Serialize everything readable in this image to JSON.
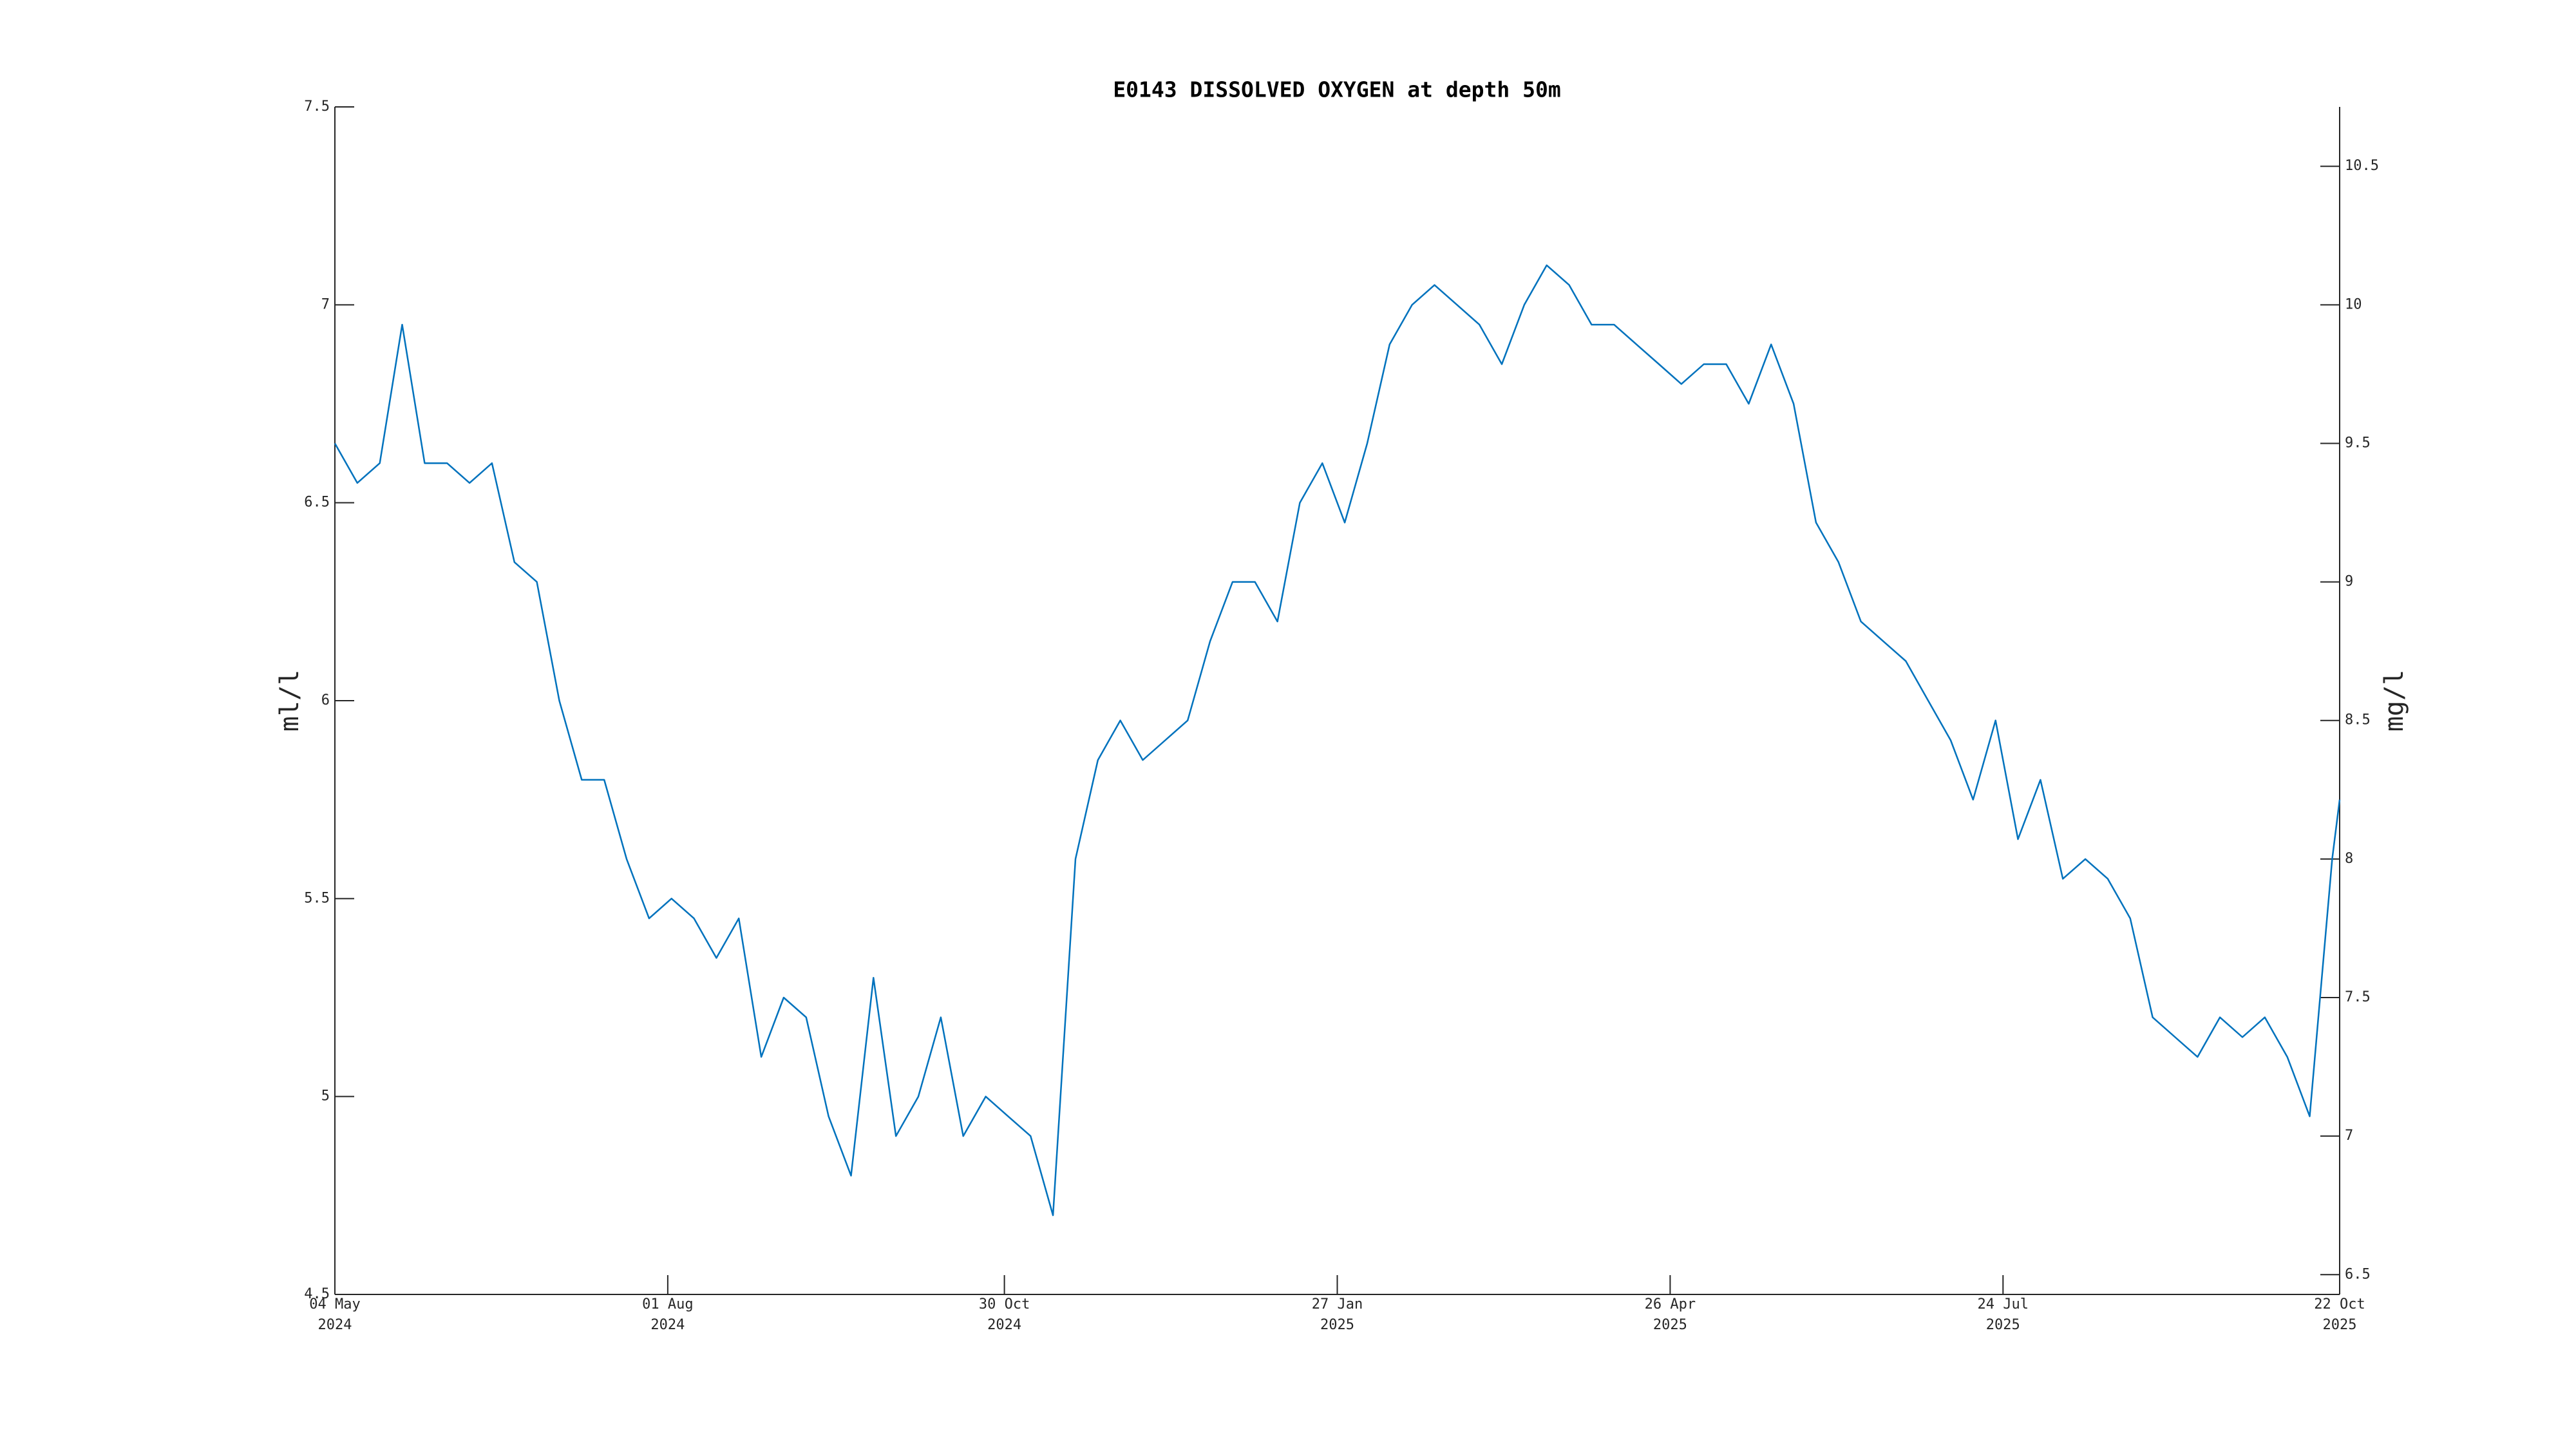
{
  "chart_data": {
    "type": "line",
    "title": "E0143 DISSOLVED OXYGEN at depth 50m",
    "ylabel": "ml/l",
    "y2label": "mg/l",
    "color": "#0072bd",
    "x": [
      "2024-05-04",
      "2024-05-10",
      "2024-05-16",
      "2024-05-22",
      "2024-05-28",
      "2024-06-03",
      "2024-06-09",
      "2024-06-15",
      "2024-06-21",
      "2024-06-27",
      "2024-07-03",
      "2024-07-09",
      "2024-07-15",
      "2024-07-21",
      "2024-07-27",
      "2024-08-02",
      "2024-08-08",
      "2024-08-14",
      "2024-08-20",
      "2024-08-26",
      "2024-09-01",
      "2024-09-07",
      "2024-09-13",
      "2024-09-19",
      "2024-09-25",
      "2024-10-01",
      "2024-10-07",
      "2024-10-13",
      "2024-10-19",
      "2024-10-25",
      "2024-10-31",
      "2024-11-06",
      "2024-11-12",
      "2024-11-18",
      "2024-11-24",
      "2024-11-30",
      "2024-12-06",
      "2024-12-12",
      "2024-12-18",
      "2024-12-24",
      "2024-12-30",
      "2025-01-05",
      "2025-01-11",
      "2025-01-17",
      "2025-01-23",
      "2025-01-29",
      "2025-02-04",
      "2025-02-10",
      "2025-02-16",
      "2025-02-22",
      "2025-02-28",
      "2025-03-06",
      "2025-03-12",
      "2025-03-18",
      "2025-03-24",
      "2025-03-30",
      "2025-04-05",
      "2025-04-11",
      "2025-04-17",
      "2025-04-23",
      "2025-04-29",
      "2025-05-05",
      "2025-05-11",
      "2025-05-17",
      "2025-05-23",
      "2025-05-29",
      "2025-06-04",
      "2025-06-10",
      "2025-06-16",
      "2025-06-22",
      "2025-06-28",
      "2025-07-04",
      "2025-07-10",
      "2025-07-16",
      "2025-07-22",
      "2025-07-28",
      "2025-08-03",
      "2025-08-09",
      "2025-08-15",
      "2025-08-21",
      "2025-08-27",
      "2025-09-02",
      "2025-09-08",
      "2025-09-14",
      "2025-09-20",
      "2025-09-26",
      "2025-10-02",
      "2025-10-08",
      "2025-10-14",
      "2025-10-20",
      "2025-10-22"
    ],
    "values": [
      6.65,
      6.55,
      6.6,
      6.95,
      6.6,
      6.6,
      6.55,
      6.6,
      6.35,
      6.3,
      6.0,
      5.8,
      5.8,
      5.6,
      5.45,
      5.5,
      5.45,
      5.35,
      5.45,
      5.1,
      5.25,
      5.2,
      4.95,
      4.8,
      5.3,
      4.9,
      5.0,
      5.2,
      4.9,
      5.0,
      4.95,
      4.9,
      4.7,
      5.6,
      5.85,
      5.95,
      5.85,
      5.9,
      5.95,
      6.15,
      6.3,
      6.3,
      6.2,
      6.5,
      6.6,
      6.45,
      6.65,
      6.9,
      7.0,
      7.05,
      7.0,
      6.95,
      6.85,
      7.0,
      7.1,
      7.05,
      6.95,
      6.95,
      6.9,
      6.85,
      6.8,
      6.85,
      6.85,
      6.75,
      6.9,
      6.75,
      6.45,
      6.35,
      6.2,
      6.15,
      6.1,
      6.0,
      5.9,
      5.75,
      5.95,
      5.65,
      5.8,
      5.55,
      5.6,
      5.55,
      5.45,
      5.2,
      5.15,
      5.1,
      5.2,
      5.15,
      5.2,
      5.1,
      4.95,
      5.6,
      5.75
    ],
    "xlim": [
      "2024-05-04",
      "2025-10-22"
    ],
    "xticks": [
      {
        "value": "2024-05-04",
        "label": [
          "04 May",
          "2024"
        ]
      },
      {
        "value": "2024-08-01",
        "label": [
          "01 Aug",
          "2024"
        ]
      },
      {
        "value": "2024-10-30",
        "label": [
          "30 Oct",
          "2024"
        ]
      },
      {
        "value": "2025-01-27",
        "label": [
          "27 Jan",
          "2025"
        ]
      },
      {
        "value": "2025-04-26",
        "label": [
          "26 Apr",
          "2025"
        ]
      },
      {
        "value": "2025-07-24",
        "label": [
          "24 Jul",
          "2025"
        ]
      },
      {
        "value": "2025-10-22",
        "label": [
          "22 Oct",
          "2025"
        ]
      }
    ],
    "ylim": [
      4.5,
      7.5
    ],
    "yticks": [
      4.5,
      5,
      5.5,
      6,
      6.5,
      7,
      7.5
    ],
    "y2lim": [
      6.4286,
      10.7143
    ],
    "y2ticks": [
      6.5,
      7,
      7.5,
      8,
      8.5,
      9,
      9.5,
      10,
      10.5
    ]
  }
}
